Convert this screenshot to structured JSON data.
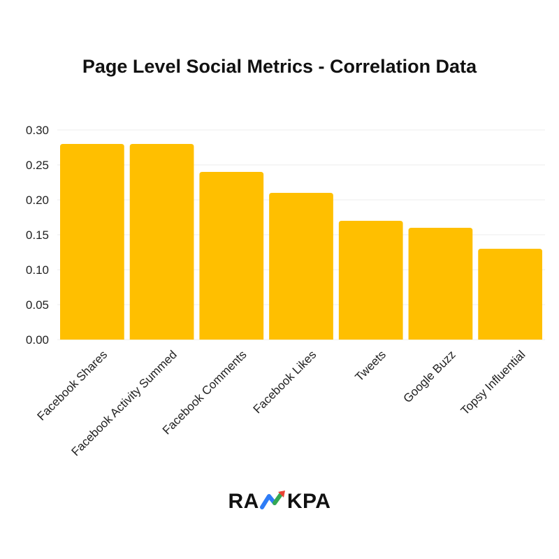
{
  "chart_data": {
    "type": "bar",
    "title": "Page Level Social Metrics - Correlation Data",
    "categories": [
      "Facebook Shares",
      "Facebook Activity Summed",
      "Facebook Comments",
      "Facebook Likes",
      "Tweets",
      "Google Buzz",
      "Topsy Influential"
    ],
    "values": [
      0.28,
      0.28,
      0.24,
      0.21,
      0.17,
      0.16,
      0.13
    ],
    "xlabel": "",
    "ylabel": "",
    "ylim": [
      0,
      0.3
    ],
    "yticks": [
      "0.00",
      "0.05",
      "0.10",
      "0.15",
      "0.20",
      "0.25",
      "0.30"
    ],
    "grid": true,
    "bar_color": "#FFBF00",
    "grid_color": "#EEEEEE"
  },
  "brand": {
    "prefix": "RA",
    "suffix": "KPA",
    "icon": "rising-arrow-icon"
  }
}
